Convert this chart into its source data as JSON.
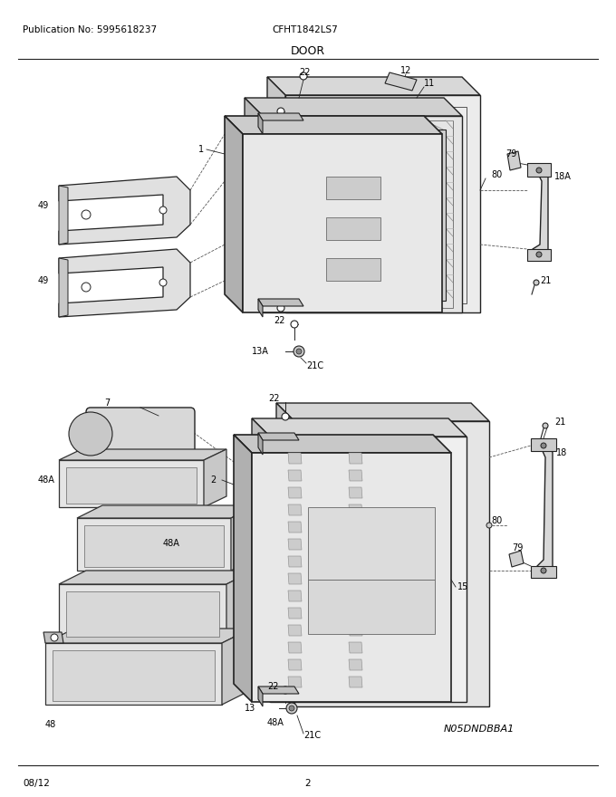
{
  "title": "DOOR",
  "pub_no": "Publication No: 5995618237",
  "model": "CFHT1842LS7",
  "date": "08/12",
  "page": "2",
  "watermark": "N05DNDBBA1",
  "bg_color": "#ffffff",
  "text_color": "#000000",
  "line_color": "#222222",
  "fig_width": 6.8,
  "fig_height": 8.8,
  "dpi": 100
}
